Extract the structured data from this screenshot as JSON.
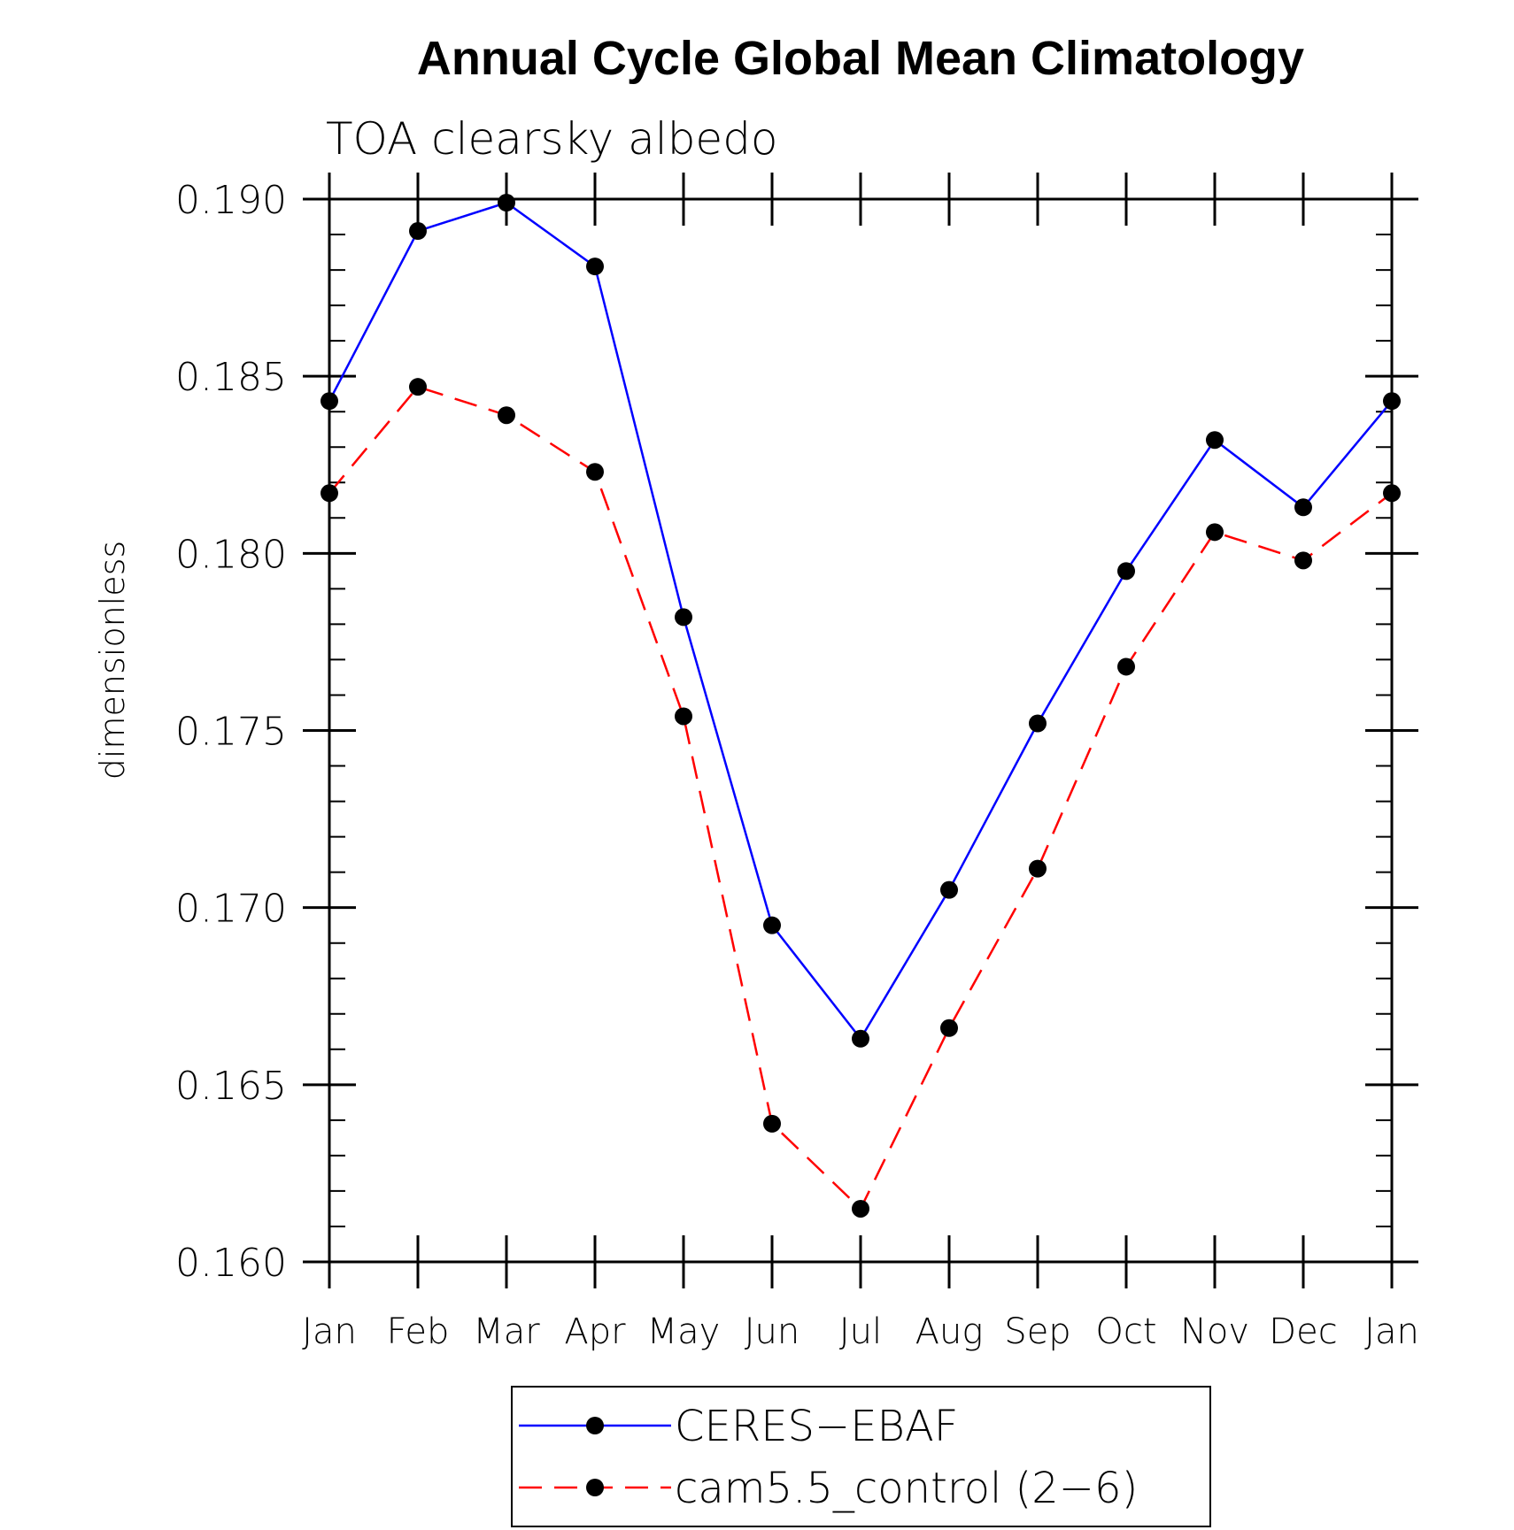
{
  "chart_data": {
    "type": "line",
    "title": "Annual Cycle Global Mean Climatology",
    "subtitle": "TOA clearsky albedo",
    "xlabel": "",
    "ylabel": "dimensionless",
    "categories": [
      "Jan",
      "Feb",
      "Mar",
      "Apr",
      "May",
      "Jun",
      "Jul",
      "Aug",
      "Sep",
      "Oct",
      "Nov",
      "Dec",
      "Jan"
    ],
    "ylim": [
      0.16,
      0.19
    ],
    "yticks": [
      "0.160",
      "0.165",
      "0.170",
      "0.175",
      "0.180",
      "0.185",
      "0.190"
    ],
    "grid": false,
    "legend_position": "bottom",
    "series": [
      {
        "name": "CERES−EBAF",
        "color": "#0000ff",
        "line_style": "solid",
        "marker": "filled-circle",
        "values": [
          0.1843,
          0.1891,
          0.1899,
          0.1881,
          0.1782,
          0.1695,
          0.1663,
          0.1705,
          0.1752,
          0.1795,
          0.1832,
          0.1813,
          0.1843
        ]
      },
      {
        "name": "cam5.5_control (2−6)",
        "color": "#ff0000",
        "line_style": "dashed",
        "marker": "filled-circle",
        "values": [
          0.1817,
          0.1847,
          0.1839,
          0.1823,
          0.1754,
          0.1639,
          0.1615,
          0.1666,
          0.1711,
          0.1768,
          0.1806,
          0.1798,
          0.1817
        ]
      }
    ]
  }
}
